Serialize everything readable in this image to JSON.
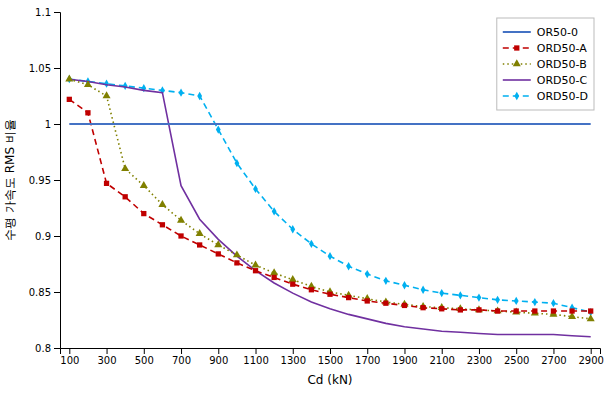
{
  "chart_data": {
    "type": "line",
    "xlabel": "Cd (kN)",
    "ylabel": "수평 가속도 RMS 비율",
    "x": [
      100,
      200,
      300,
      400,
      500,
      600,
      700,
      800,
      900,
      1000,
      1100,
      1200,
      1300,
      1400,
      1500,
      1600,
      1700,
      1800,
      1900,
      2000,
      2100,
      2200,
      2300,
      2400,
      2500,
      2600,
      2700,
      2800,
      2900
    ],
    "series": [
      {
        "name": "OR50-0",
        "color": "#4472C4",
        "line_style": "solid",
        "values": [
          1.0,
          1.0,
          1.0,
          1.0,
          1.0,
          1.0,
          1.0,
          1.0,
          1.0,
          1.0,
          1.0,
          1.0,
          1.0,
          1.0,
          1.0,
          1.0,
          1.0,
          1.0,
          1.0,
          1.0,
          1.0,
          1.0,
          1.0,
          1.0,
          1.0,
          1.0,
          1.0,
          1.0,
          1.0
        ]
      },
      {
        "name": "ORD50-A",
        "color": "#C00000",
        "line_style": "dashed",
        "marker": "square",
        "values": [
          1.022,
          1.01,
          0.947,
          0.935,
          0.92,
          0.91,
          0.9,
          0.892,
          0.884,
          0.876,
          0.869,
          0.863,
          0.857,
          0.852,
          0.848,
          0.845,
          0.842,
          0.84,
          0.838,
          0.836,
          0.835,
          0.834,
          0.834,
          0.833,
          0.833,
          0.833,
          0.833,
          0.833,
          0.833
        ]
      },
      {
        "name": "ORD50-B",
        "color": "#808000",
        "line_style": "dotted",
        "marker": "triangle",
        "values": [
          1.04,
          1.035,
          1.025,
          0.96,
          0.945,
          0.928,
          0.914,
          0.902,
          0.892,
          0.883,
          0.874,
          0.867,
          0.861,
          0.855,
          0.85,
          0.847,
          0.844,
          0.841,
          0.839,
          0.837,
          0.836,
          0.835,
          0.834,
          0.833,
          0.832,
          0.831,
          0.83,
          0.828,
          0.826
        ]
      },
      {
        "name": "ORD50-C",
        "color": "#7030A0",
        "line_style": "solid",
        "values": [
          1.04,
          1.038,
          1.035,
          1.033,
          1.03,
          1.028,
          0.945,
          0.915,
          0.897,
          0.882,
          0.869,
          0.858,
          0.849,
          0.841,
          0.835,
          0.83,
          0.826,
          0.822,
          0.819,
          0.817,
          0.815,
          0.814,
          0.813,
          0.812,
          0.812,
          0.812,
          0.812,
          0.811,
          0.81
        ]
      },
      {
        "name": "ORD50-D",
        "color": "#00B0F0",
        "line_style": "dashed",
        "marker": "diamond",
        "values": [
          1.04,
          1.038,
          1.036,
          1.034,
          1.032,
          1.03,
          1.028,
          1.025,
          0.995,
          0.965,
          0.942,
          0.922,
          0.906,
          0.893,
          0.882,
          0.873,
          0.866,
          0.86,
          0.856,
          0.852,
          0.849,
          0.847,
          0.845,
          0.843,
          0.842,
          0.841,
          0.84,
          0.836,
          0.832
        ]
      }
    ],
    "xlim": [
      50,
      2950
    ],
    "xticks": [
      100,
      300,
      500,
      700,
      900,
      1100,
      1300,
      1500,
      1700,
      1900,
      2100,
      2300,
      2500,
      2700,
      2900
    ],
    "ylim": [
      0.8,
      1.1
    ],
    "yticks": [
      0.8,
      0.85,
      0.9,
      0.95,
      1,
      1.05,
      1.1
    ],
    "grid": false,
    "legend": "upper right"
  }
}
